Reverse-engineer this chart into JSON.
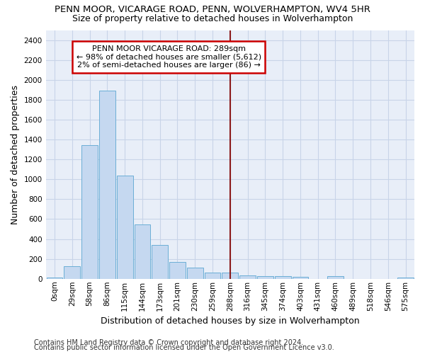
{
  "title": "PENN MOOR, VICARAGE ROAD, PENN, WOLVERHAMPTON, WV4 5HR",
  "subtitle": "Size of property relative to detached houses in Wolverhampton",
  "xlabel": "Distribution of detached houses by size in Wolverhampton",
  "ylabel": "Number of detached properties",
  "footer_line1": "Contains HM Land Registry data © Crown copyright and database right 2024.",
  "footer_line2": "Contains public sector information licensed under the Open Government Licence v3.0.",
  "annotation_line1": "PENN MOOR VICARAGE ROAD: 289sqm",
  "annotation_line2": "← 98% of detached houses are smaller (5,612)",
  "annotation_line3": "2% of semi-detached houses are larger (86) →",
  "bar_labels": [
    "0sqm",
    "29sqm",
    "58sqm",
    "86sqm",
    "115sqm",
    "144sqm",
    "173sqm",
    "201sqm",
    "230sqm",
    "259sqm",
    "288sqm",
    "316sqm",
    "345sqm",
    "374sqm",
    "403sqm",
    "431sqm",
    "460sqm",
    "489sqm",
    "518sqm",
    "546sqm",
    "575sqm"
  ],
  "bar_values": [
    15,
    125,
    1345,
    1890,
    1040,
    545,
    340,
    170,
    110,
    65,
    60,
    35,
    30,
    25,
    20,
    0,
    25,
    0,
    0,
    0,
    15
  ],
  "bar_color": "#c5d8f0",
  "bar_edge_color": "#6baed6",
  "vline_index": 10,
  "vline_color": "#8b1a1a",
  "annotation_box_edge_color": "#cc0000",
  "ylim": [
    0,
    2500
  ],
  "yticks": [
    0,
    200,
    400,
    600,
    800,
    1000,
    1200,
    1400,
    1600,
    1800,
    2000,
    2200,
    2400
  ],
  "grid_color": "#c8d4e8",
  "background_color": "#e8eef8",
  "title_fontsize": 9.5,
  "subtitle_fontsize": 9,
  "axis_label_fontsize": 9,
  "tick_fontsize": 7.5,
  "footer_fontsize": 7
}
